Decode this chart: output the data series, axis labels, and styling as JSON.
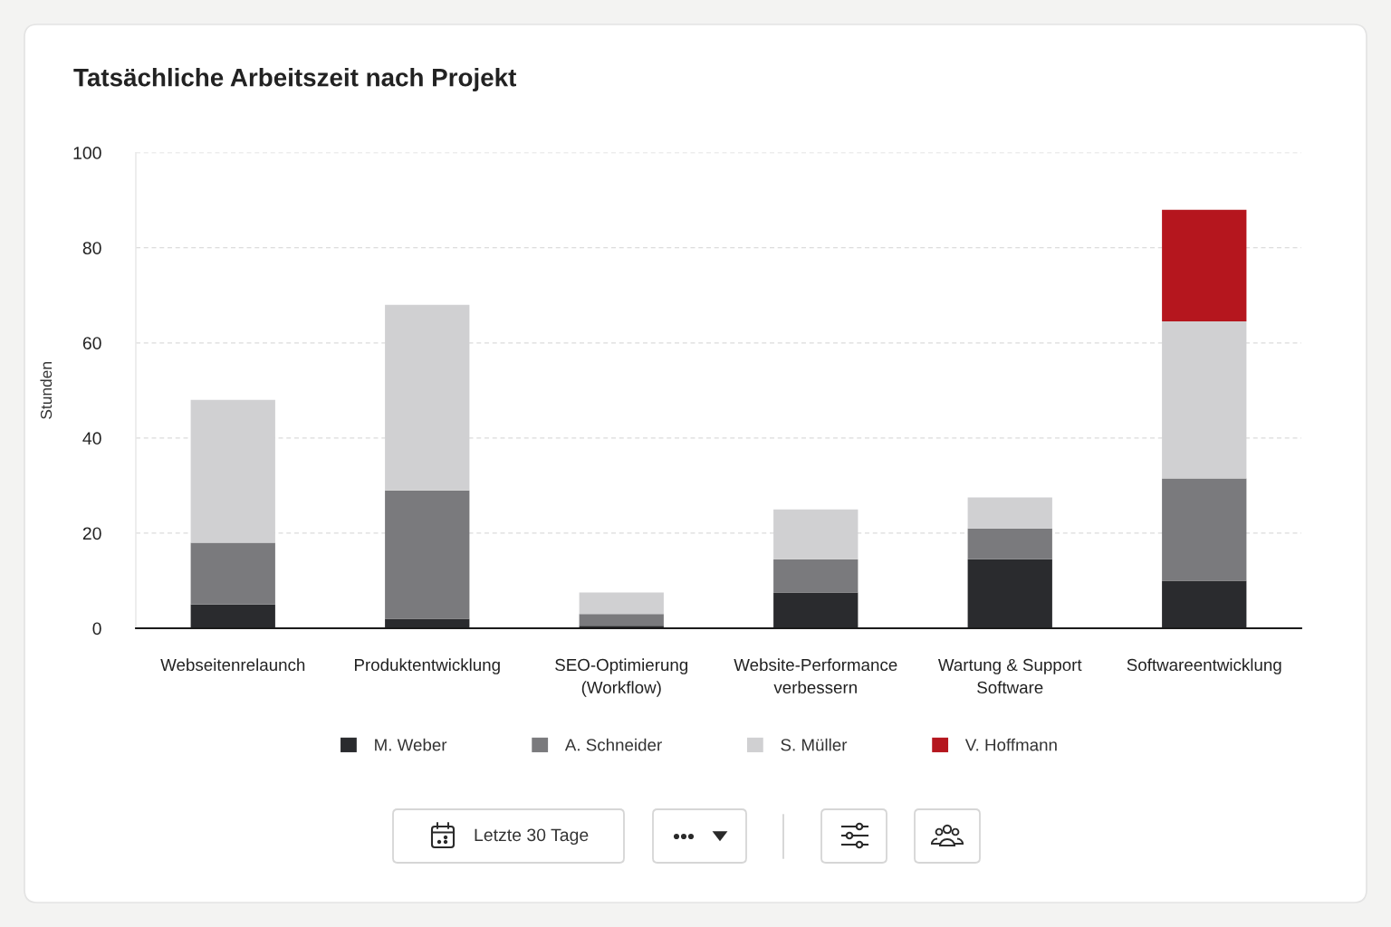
{
  "chart_data": {
    "type": "bar",
    "title": "Tatsächliche Arbeitszeit nach Projekt",
    "ylabel": "Stunden",
    "categories": [
      "Webseitenrelaunch",
      "Produktentwicklung",
      "SEO-Optimierung\n(Workflow)",
      "Website-Performance\nverbessern",
      "Wartung & Support\nSoftware",
      "Softwareentwicklung"
    ],
    "series": [
      {
        "name": "M. Weber",
        "color": "#2a2b2e",
        "values": [
          5,
          2,
          0.5,
          7.5,
          14.5,
          10
        ]
      },
      {
        "name": "A. Schneider",
        "color": "#7a7a7d",
        "values": [
          13,
          27,
          2.5,
          7,
          6.5,
          21.5
        ]
      },
      {
        "name": "S. Müller",
        "color": "#d0d0d2",
        "values": [
          30,
          39,
          4.5,
          10.5,
          6.5,
          33
        ]
      },
      {
        "name": "V. Hoffmann",
        "color": "#b5161e",
        "values": [
          null,
          null,
          null,
          null,
          null,
          23.5
        ]
      }
    ],
    "stacked": true,
    "ylim": [
      0,
      100
    ],
    "yticks": [
      0,
      20,
      40,
      60,
      80,
      100
    ],
    "grid": "y",
    "legend": "bottom",
    "annotations": [
      "Letzte 30 Tage"
    ]
  }
}
